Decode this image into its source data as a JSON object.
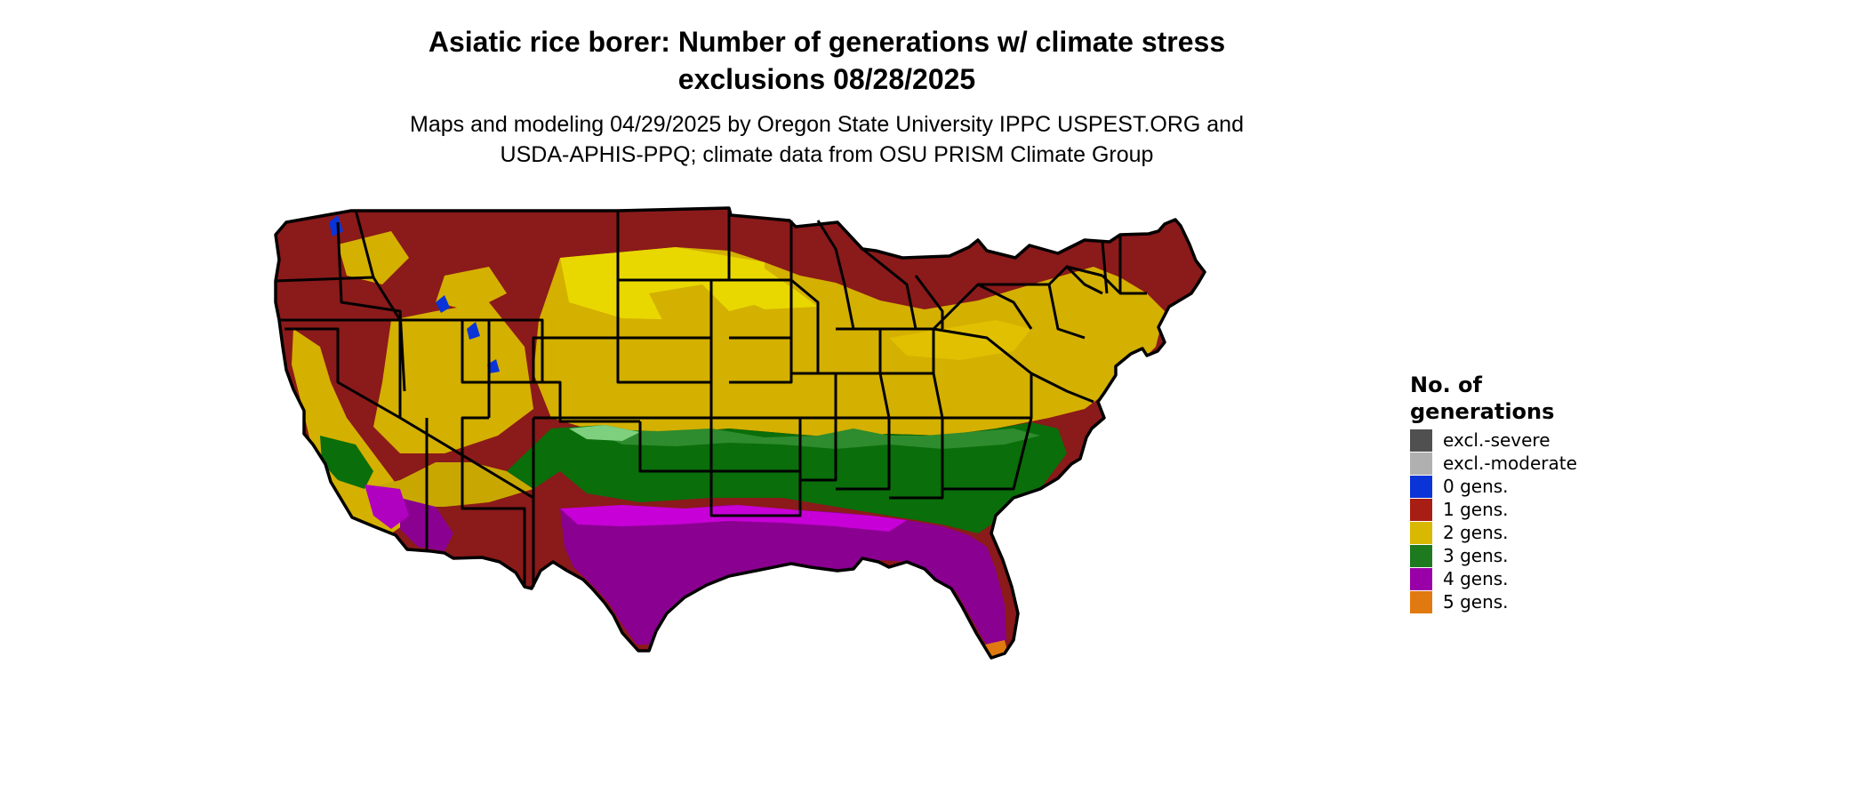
{
  "title_line1": "Asiatic rice borer: Number of generations w/ climate stress",
  "title_line2": "exclusions 08/28/2025",
  "subtitle_line1": "Maps and modeling 04/29/2025 by Oregon State University IPPC USPEST.ORG and",
  "subtitle_line2": "USDA-APHIS-PPQ; climate data from OSU PRISM Climate Group",
  "legend": {
    "title_line1": "No. of",
    "title_line2": "generations",
    "items": [
      {
        "label": "excl.-severe",
        "color": "#505050"
      },
      {
        "label": "excl.-moderate",
        "color": "#b0b0b0"
      },
      {
        "label": "0 gens.",
        "color": "#0a34d8"
      },
      {
        "label": "1 gens.",
        "color": "#a81e14"
      },
      {
        "label": "2 gens.",
        "color": "#d8b800"
      },
      {
        "label": "3 gens.",
        "color": "#1e7a1e"
      },
      {
        "label": "4 gens.",
        "color": "#9a00a8"
      },
      {
        "label": "5 gens.",
        "color": "#e07a10"
      }
    ]
  }
}
